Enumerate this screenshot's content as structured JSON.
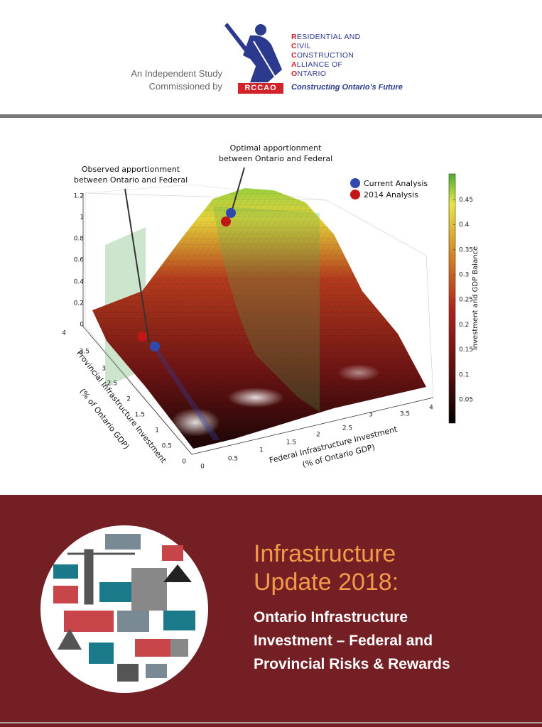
{
  "header": {
    "study_lines": [
      "An Independent Study",
      "Commissioned by"
    ],
    "logo_badge": "RCCAO",
    "org_name": [
      "RESIDENTIAL AND",
      "CIVIL",
      "CONSTRUCTION",
      "ALLIANCE OF",
      "ONTARIO"
    ],
    "tagline": "Constructing Ontario’s Future"
  },
  "figure": {
    "annotations": [
      [
        "Optimal apportionment",
        "between Ontario and Federal"
      ],
      [
        "Observed apportionment",
        "between Ontario and Federal"
      ]
    ],
    "legend": [
      "Current Analysis",
      "2014 Analysis"
    ],
    "z_ticks": [
      "0",
      "0.2",
      "0.4",
      "0.6",
      "0.8",
      "1",
      "1.2"
    ],
    "provincial_ticks": [
      "0",
      "0.5",
      "1",
      "1.5",
      "2",
      "2.5",
      "3",
      "3.5",
      "4"
    ],
    "federal_ticks": [
      "0",
      "0.5",
      "1",
      "1.5",
      "2",
      "2.5",
      "3",
      "3.5",
      "4"
    ],
    "provincial_axis_label": [
      "Provincial Infrastructure Investment",
      "(% of Ontario GDP)"
    ],
    "federal_axis_label": [
      "Federal Infrastructure Investment",
      "(% of Ontario GDP)"
    ],
    "colorbar_ticks": [
      "0.05",
      "0.1",
      "0.15",
      "0.2",
      "0.25",
      "0.3",
      "0.35",
      "0.4",
      "0.45"
    ],
    "colorbar_label": "Investment and GDP Balance"
  },
  "footer": {
    "title": [
      "Infrastructure",
      "Update 2018:"
    ],
    "subtitle": [
      "Ontario Infrastructure",
      "Investment – Federal and",
      "Provincial Risks & Rewards"
    ]
  }
}
